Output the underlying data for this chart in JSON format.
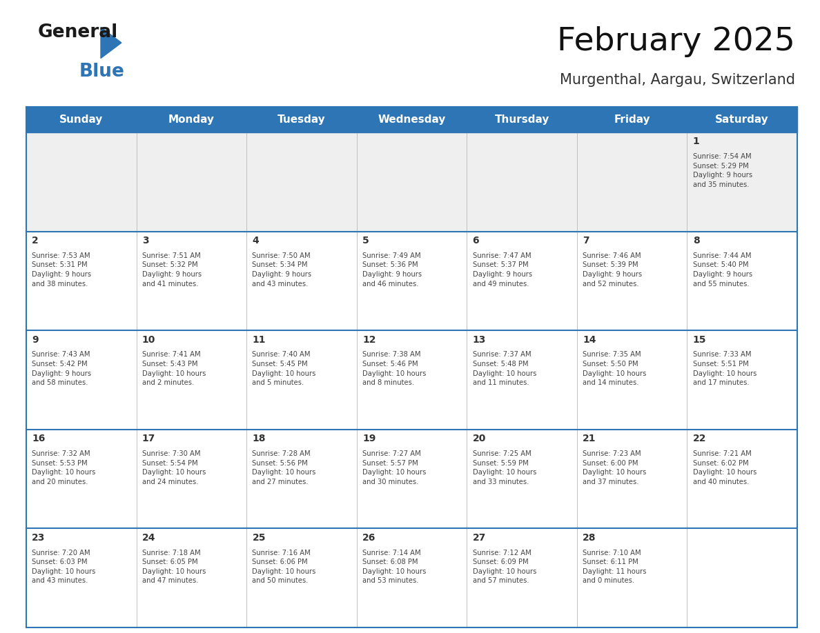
{
  "title": "February 2025",
  "subtitle": "Murgenthal, Aargau, Switzerland",
  "header_color": "#2E75B6",
  "header_text_color": "#FFFFFF",
  "day_names": [
    "Sunday",
    "Monday",
    "Tuesday",
    "Wednesday",
    "Thursday",
    "Friday",
    "Saturday"
  ],
  "divider_color": "#2E75B6",
  "border_color": "#2E75B6",
  "bg_color": "#FFFFFF",
  "row1_bg": "#EFEFEF",
  "cell_text_color": "#444444",
  "day_num_color": "#333333",
  "logo_general_color": "#1a1a1a",
  "logo_blue_color": "#2E75B6",
  "calendar": [
    [
      {
        "day": null,
        "info": ""
      },
      {
        "day": null,
        "info": ""
      },
      {
        "day": null,
        "info": ""
      },
      {
        "day": null,
        "info": ""
      },
      {
        "day": null,
        "info": ""
      },
      {
        "day": null,
        "info": ""
      },
      {
        "day": 1,
        "info": "Sunrise: 7:54 AM\nSunset: 5:29 PM\nDaylight: 9 hours\nand 35 minutes."
      }
    ],
    [
      {
        "day": 2,
        "info": "Sunrise: 7:53 AM\nSunset: 5:31 PM\nDaylight: 9 hours\nand 38 minutes."
      },
      {
        "day": 3,
        "info": "Sunrise: 7:51 AM\nSunset: 5:32 PM\nDaylight: 9 hours\nand 41 minutes."
      },
      {
        "day": 4,
        "info": "Sunrise: 7:50 AM\nSunset: 5:34 PM\nDaylight: 9 hours\nand 43 minutes."
      },
      {
        "day": 5,
        "info": "Sunrise: 7:49 AM\nSunset: 5:36 PM\nDaylight: 9 hours\nand 46 minutes."
      },
      {
        "day": 6,
        "info": "Sunrise: 7:47 AM\nSunset: 5:37 PM\nDaylight: 9 hours\nand 49 minutes."
      },
      {
        "day": 7,
        "info": "Sunrise: 7:46 AM\nSunset: 5:39 PM\nDaylight: 9 hours\nand 52 minutes."
      },
      {
        "day": 8,
        "info": "Sunrise: 7:44 AM\nSunset: 5:40 PM\nDaylight: 9 hours\nand 55 minutes."
      }
    ],
    [
      {
        "day": 9,
        "info": "Sunrise: 7:43 AM\nSunset: 5:42 PM\nDaylight: 9 hours\nand 58 minutes."
      },
      {
        "day": 10,
        "info": "Sunrise: 7:41 AM\nSunset: 5:43 PM\nDaylight: 10 hours\nand 2 minutes."
      },
      {
        "day": 11,
        "info": "Sunrise: 7:40 AM\nSunset: 5:45 PM\nDaylight: 10 hours\nand 5 minutes."
      },
      {
        "day": 12,
        "info": "Sunrise: 7:38 AM\nSunset: 5:46 PM\nDaylight: 10 hours\nand 8 minutes."
      },
      {
        "day": 13,
        "info": "Sunrise: 7:37 AM\nSunset: 5:48 PM\nDaylight: 10 hours\nand 11 minutes."
      },
      {
        "day": 14,
        "info": "Sunrise: 7:35 AM\nSunset: 5:50 PM\nDaylight: 10 hours\nand 14 minutes."
      },
      {
        "day": 15,
        "info": "Sunrise: 7:33 AM\nSunset: 5:51 PM\nDaylight: 10 hours\nand 17 minutes."
      }
    ],
    [
      {
        "day": 16,
        "info": "Sunrise: 7:32 AM\nSunset: 5:53 PM\nDaylight: 10 hours\nand 20 minutes."
      },
      {
        "day": 17,
        "info": "Sunrise: 7:30 AM\nSunset: 5:54 PM\nDaylight: 10 hours\nand 24 minutes."
      },
      {
        "day": 18,
        "info": "Sunrise: 7:28 AM\nSunset: 5:56 PM\nDaylight: 10 hours\nand 27 minutes."
      },
      {
        "day": 19,
        "info": "Sunrise: 7:27 AM\nSunset: 5:57 PM\nDaylight: 10 hours\nand 30 minutes."
      },
      {
        "day": 20,
        "info": "Sunrise: 7:25 AM\nSunset: 5:59 PM\nDaylight: 10 hours\nand 33 minutes."
      },
      {
        "day": 21,
        "info": "Sunrise: 7:23 AM\nSunset: 6:00 PM\nDaylight: 10 hours\nand 37 minutes."
      },
      {
        "day": 22,
        "info": "Sunrise: 7:21 AM\nSunset: 6:02 PM\nDaylight: 10 hours\nand 40 minutes."
      }
    ],
    [
      {
        "day": 23,
        "info": "Sunrise: 7:20 AM\nSunset: 6:03 PM\nDaylight: 10 hours\nand 43 minutes."
      },
      {
        "day": 24,
        "info": "Sunrise: 7:18 AM\nSunset: 6:05 PM\nDaylight: 10 hours\nand 47 minutes."
      },
      {
        "day": 25,
        "info": "Sunrise: 7:16 AM\nSunset: 6:06 PM\nDaylight: 10 hours\nand 50 minutes."
      },
      {
        "day": 26,
        "info": "Sunrise: 7:14 AM\nSunset: 6:08 PM\nDaylight: 10 hours\nand 53 minutes."
      },
      {
        "day": 27,
        "info": "Sunrise: 7:12 AM\nSunset: 6:09 PM\nDaylight: 10 hours\nand 57 minutes."
      },
      {
        "day": 28,
        "info": "Sunrise: 7:10 AM\nSunset: 6:11 PM\nDaylight: 11 hours\nand 0 minutes."
      },
      {
        "day": null,
        "info": ""
      }
    ]
  ]
}
